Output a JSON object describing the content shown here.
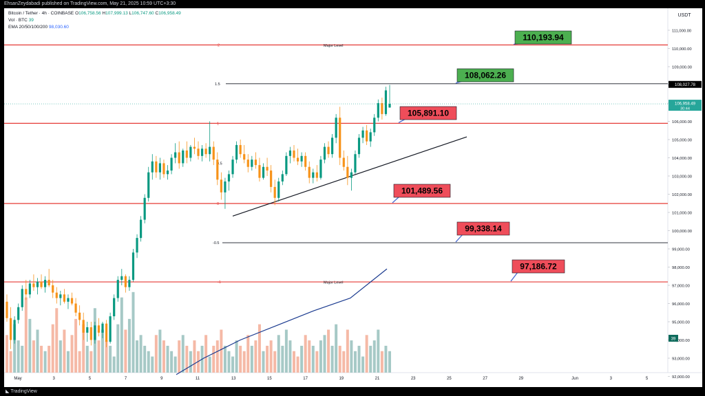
{
  "header": {
    "publisher": "EhsanZeydabadi published on TradingView.com, May 21, 2025 10:59 UTC+3:30"
  },
  "footer": {
    "brand": "TradingView"
  },
  "legend": {
    "symbol": "Bitcoin / Tether · 4h · COINBASE",
    "ohlc": [
      {
        "k": "O",
        "v": "106,758.56"
      },
      {
        "k": "H",
        "v": "107,999.13"
      },
      {
        "k": "L",
        "v": "106,747.60"
      },
      {
        "k": "C",
        "v": "106,958.49"
      }
    ],
    "vol_label": "Vol · BTC",
    "vol_value": "39",
    "ema_label": "EMA 20/50/100/200",
    "ema_value": "98,030.60"
  },
  "colors": {
    "up": "#089981",
    "down": "#f7931a",
    "level": "#e53935",
    "ema": "#1a3a8f",
    "green_box": "#4caf50",
    "red_box": "#ef4d5a",
    "vol_up": "#a6c9c6",
    "vol_down": "#f5b9a6"
  },
  "chart_data": {
    "type": "candlestick",
    "currency": "USDT",
    "ylim": [
      92000,
      112000
    ],
    "x_ticks": [
      "May",
      "3",
      "5",
      "7",
      "9",
      "11",
      "13",
      "15",
      "17",
      "19",
      "21",
      "23",
      "25",
      "27",
      "29",
      "Jun",
      "3",
      "5"
    ],
    "y_ticks": [
      "111,000.00",
      "110,000.00",
      "109,000.00",
      "108,000.00",
      "107,000.00",
      "106,000.00",
      "105,000.00",
      "104,000.00",
      "103,000.00",
      "102,000.00",
      "101,000.00",
      "100,000.00",
      "99,000.00",
      "98,000.00",
      "97,000.00",
      "96,000.00",
      "95,000.00",
      "94,000.00",
      "93,000.00",
      "92,000.00"
    ],
    "last_price": "106,958.49",
    "countdown": "30:44",
    "high_marker": "108,027.78",
    "volume_badge": "39",
    "fib_levels": [
      {
        "ratio": "2",
        "price": 110193.94,
        "note": "Major Level",
        "color": "red"
      },
      {
        "ratio": "1.5",
        "price": 108062.26,
        "note": "",
        "color": "black"
      },
      {
        "ratio": "1",
        "price": 105891.1,
        "note": "",
        "color": "red"
      },
      {
        "ratio": "0.5",
        "price": 103700,
        "note": "",
        "color": "none"
      },
      {
        "ratio": "0",
        "price": 101489.56,
        "note": "",
        "color": "red"
      },
      {
        "ratio": "-0.5",
        "price": 99338.14,
        "note": "",
        "color": "black"
      },
      {
        "ratio": "-1",
        "price": 97186.72,
        "note": "Major Level",
        "color": "red"
      }
    ],
    "price_labels": [
      {
        "text": "110,193.94",
        "kind": "green",
        "price": 110193.94
      },
      {
        "text": "108,062.26",
        "kind": "green",
        "price": 108062.26
      },
      {
        "text": "105,891.10",
        "kind": "red",
        "price": 105891.1
      },
      {
        "text": "101,489.56",
        "kind": "red",
        "price": 101489.56
      },
      {
        "text": "99,338.14",
        "kind": "red",
        "price": 99338.14
      },
      {
        "text": "97,186.72",
        "kind": "red",
        "price": 97186.72
      }
    ],
    "trendline": [
      {
        "day": 12.8,
        "price": 100800
      },
      {
        "day": 25.5,
        "price": 105150
      }
    ],
    "ema_line": [
      {
        "day": 9.5,
        "price": 92100
      },
      {
        "day": 11,
        "price": 93000
      },
      {
        "day": 13,
        "price": 94000
      },
      {
        "day": 15,
        "price": 94800
      },
      {
        "day": 17,
        "price": 95600
      },
      {
        "day": 19,
        "price": 96300
      },
      {
        "day": 21,
        "price": 97900
      }
    ],
    "candles": [
      [
        96100,
        96500,
        95000,
        95200
      ],
      [
        95200,
        95800,
        93500,
        94000
      ],
      [
        94000,
        95300,
        93800,
        95100
      ],
      [
        95100,
        96000,
        94900,
        95800
      ],
      [
        95800,
        97000,
        95600,
        96800
      ],
      [
        96800,
        97300,
        96200,
        96500
      ],
      [
        96500,
        97300,
        96300,
        97100
      ],
      [
        97100,
        97600,
        96700,
        96900
      ],
      [
        96900,
        97400,
        96500,
        97200
      ],
      [
        97200,
        97600,
        96800,
        96900
      ],
      [
        96900,
        97500,
        96600,
        97300
      ],
      [
        97300,
        97900,
        96900,
        97000
      ],
      [
        97000,
        97300,
        96300,
        96600
      ],
      [
        96600,
        96900,
        96000,
        96300
      ],
      [
        96300,
        96700,
        95900,
        96500
      ],
      [
        96500,
        96800,
        96000,
        96100
      ],
      [
        96100,
        96500,
        95700,
        96300
      ],
      [
        96300,
        96600,
        95900,
        96000
      ],
      [
        96000,
        96300,
        95300,
        95500
      ],
      [
        95500,
        95900,
        94800,
        95100
      ],
      [
        95100,
        95500,
        94000,
        94400
      ],
      [
        94400,
        95000,
        93900,
        94700
      ],
      [
        94700,
        95000,
        93700,
        94000
      ],
      [
        94000,
        95000,
        93800,
        94800
      ],
      [
        94800,
        95200,
        94200,
        94400
      ],
      [
        94400,
        95000,
        94100,
        94900
      ],
      [
        94900,
        95100,
        93600,
        93900
      ],
      [
        93900,
        95500,
        93800,
        95300
      ],
      [
        95300,
        96500,
        95100,
        96300
      ],
      [
        96300,
        97500,
        96100,
        97300
      ],
      [
        97300,
        97900,
        97000,
        97500
      ],
      [
        97500,
        97600,
        96600,
        96900
      ],
      [
        96900,
        97500,
        96700,
        97300
      ],
      [
        97300,
        99000,
        97200,
        98800
      ],
      [
        98800,
        99800,
        98500,
        99600
      ],
      [
        99600,
        100800,
        99400,
        100600
      ],
      [
        100600,
        102000,
        100400,
        101800
      ],
      [
        101800,
        103500,
        101600,
        103200
      ],
      [
        103200,
        104200,
        102800,
        103800
      ],
      [
        103800,
        104100,
        102900,
        103200
      ],
      [
        103200,
        104000,
        102800,
        103700
      ],
      [
        103700,
        103900,
        102900,
        103100
      ],
      [
        103100,
        103600,
        102800,
        103300
      ],
      [
        103300,
        104200,
        103100,
        104000
      ],
      [
        104000,
        104800,
        103700,
        104300
      ],
      [
        104300,
        104900,
        103400,
        103700
      ],
      [
        103700,
        104500,
        103500,
        104400
      ],
      [
        104400,
        104900,
        103700,
        104000
      ],
      [
        104000,
        104700,
        103800,
        104600
      ],
      [
        104600,
        105100,
        104200,
        104500
      ],
      [
        104500,
        104900,
        103900,
        104100
      ],
      [
        104100,
        104700,
        103800,
        104500
      ],
      [
        104500,
        104800,
        104000,
        104200
      ],
      [
        104200,
        106000,
        103800,
        104600
      ],
      [
        104600,
        104900,
        103600,
        103900
      ],
      [
        103900,
        104300,
        102500,
        102800
      ],
      [
        102800,
        103200,
        101700,
        102100
      ],
      [
        102100,
        102900,
        101200,
        102700
      ],
      [
        102700,
        103300,
        102200,
        103100
      ],
      [
        103100,
        104100,
        102900,
        103900
      ],
      [
        103900,
        104900,
        103700,
        104700
      ],
      [
        104700,
        105000,
        104000,
        104200
      ],
      [
        104200,
        104700,
        103700,
        103900
      ],
      [
        103900,
        104200,
        103200,
        103500
      ],
      [
        103500,
        104100,
        103300,
        103900
      ],
      [
        103900,
        104300,
        103400,
        103600
      ],
      [
        103600,
        104000,
        102700,
        102900
      ],
      [
        102900,
        103700,
        102800,
        103500
      ],
      [
        103500,
        104000,
        103000,
        103300
      ],
      [
        103300,
        103600,
        102100,
        102400
      ],
      [
        102400,
        102800,
        101400,
        101800
      ],
      [
        101800,
        102900,
        101600,
        102700
      ],
      [
        102700,
        103300,
        102500,
        103100
      ],
      [
        103100,
        104300,
        103000,
        104100
      ],
      [
        104100,
        104600,
        103700,
        104400
      ],
      [
        104400,
        104700,
        103800,
        104000
      ],
      [
        104000,
        104500,
        103600,
        103800
      ],
      [
        103800,
        104300,
        103500,
        104100
      ],
      [
        104100,
        104300,
        103300,
        103500
      ],
      [
        103500,
        103800,
        102600,
        102900
      ],
      [
        102900,
        103400,
        102600,
        103200
      ],
      [
        103200,
        103600,
        102700,
        102900
      ],
      [
        102900,
        104100,
        102800,
        103900
      ],
      [
        103900,
        104800,
        103700,
        104600
      ],
      [
        104600,
        104900,
        104000,
        104200
      ],
      [
        104200,
        105300,
        104000,
        105100
      ],
      [
        105100,
        106400,
        104800,
        106200
      ],
      [
        106200,
        106800,
        103600,
        104000
      ],
      [
        104000,
        104400,
        103300,
        103500
      ],
      [
        103500,
        104100,
        102500,
        102900
      ],
      [
        102900,
        103400,
        102200,
        103200
      ],
      [
        103200,
        104400,
        103100,
        104200
      ],
      [
        104200,
        105300,
        104000,
        105100
      ],
      [
        105100,
        105700,
        104800,
        105500
      ],
      [
        105500,
        105800,
        104700,
        104900
      ],
      [
        104900,
        105600,
        104600,
        105400
      ],
      [
        105400,
        106400,
        105200,
        106200
      ],
      [
        106200,
        107200,
        106000,
        107000
      ],
      [
        107000,
        107300,
        106100,
        106400
      ],
      [
        106400,
        107900,
        106300,
        107700
      ],
      [
        106758,
        107999,
        106747,
        106958
      ]
    ],
    "volumes": [
      7,
      4,
      9,
      6,
      5,
      14,
      10,
      6,
      8,
      5,
      4,
      5,
      9,
      12,
      6,
      8,
      4,
      7,
      10,
      4,
      9,
      5,
      4,
      12,
      6,
      8,
      6,
      5,
      3,
      9,
      14,
      8,
      10,
      15,
      6,
      7,
      5,
      4,
      3,
      7,
      8,
      6,
      5,
      4,
      3,
      6,
      7,
      5,
      4,
      6,
      4,
      5,
      7,
      3,
      5,
      6,
      8,
      5,
      4,
      3,
      6,
      5,
      4,
      7,
      5,
      6,
      9,
      4,
      5,
      6,
      4,
      7,
      5,
      8,
      6,
      4,
      3,
      5,
      7,
      6,
      5,
      4,
      6,
      7,
      8,
      5,
      9,
      5,
      4,
      8,
      6,
      4,
      5,
      3,
      7,
      5,
      6,
      8,
      4,
      5,
      4
    ]
  }
}
